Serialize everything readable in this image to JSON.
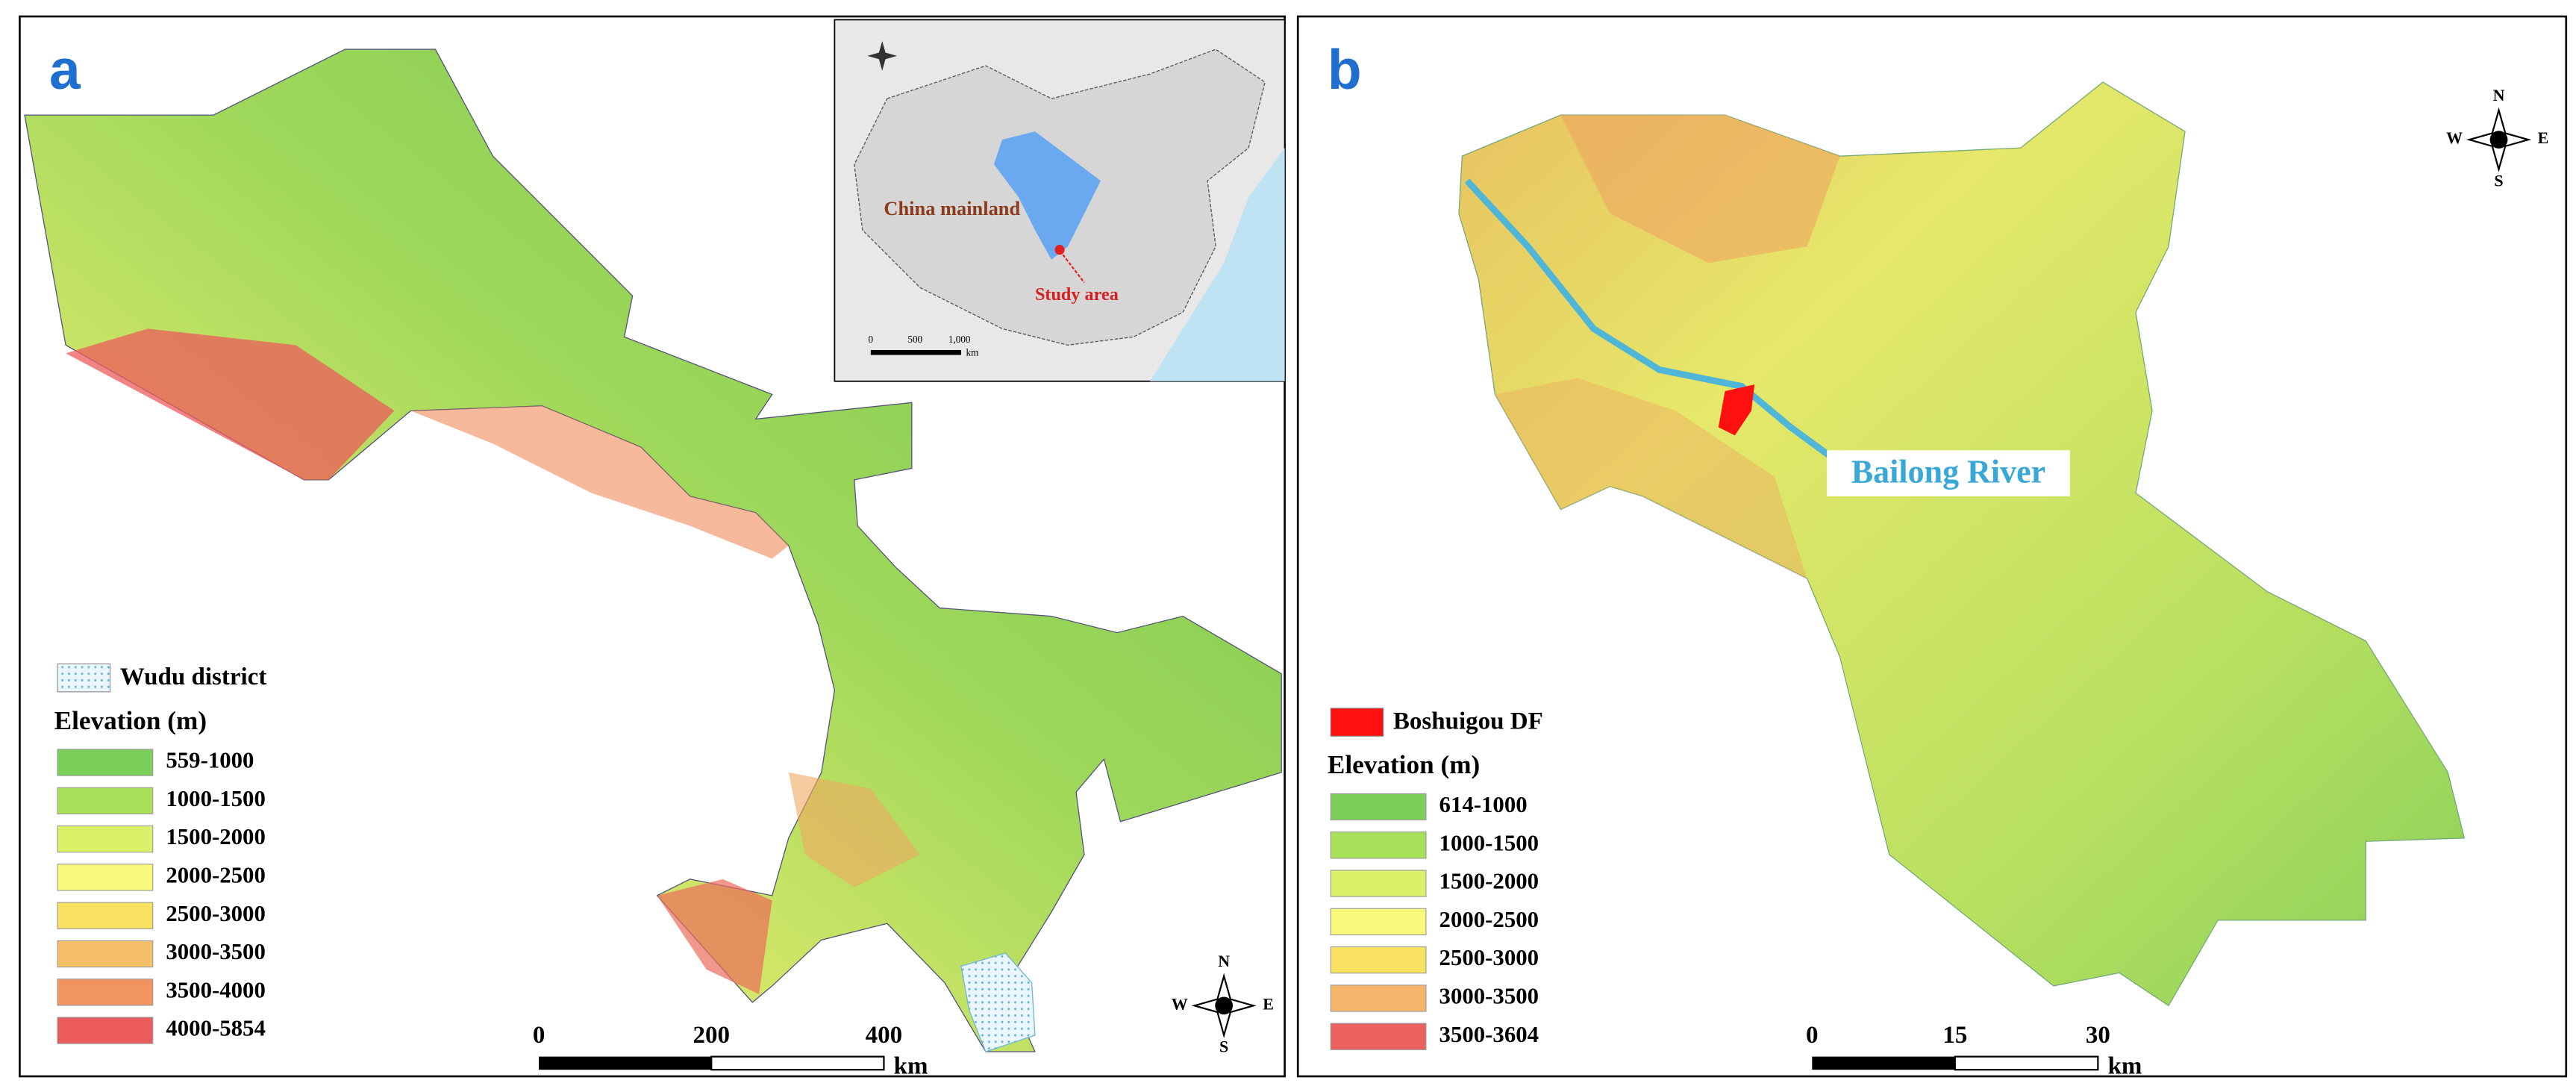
{
  "panel_a": {
    "label": "a",
    "legend": {
      "district": "Wudu district",
      "title": "Elevation (m)",
      "items": [
        {
          "range": "559-1000",
          "color": "#7ccf5a"
        },
        {
          "range": "1000-1500",
          "color": "#a8e05a"
        },
        {
          "range": "1500-2000",
          "color": "#dcf06a"
        },
        {
          "range": "2000-2500",
          "color": "#f8f87a"
        },
        {
          "range": "2500-3000",
          "color": "#f8e060"
        },
        {
          "range": "3000-3500",
          "color": "#f5bf6a"
        },
        {
          "range": "3500-4000",
          "color": "#f19460"
        },
        {
          "range": "4000-5854",
          "color": "#ec5b5b"
        }
      ]
    },
    "scale": {
      "ticks": [
        "0",
        "200",
        "400"
      ],
      "unit": "km"
    },
    "compass": {
      "n": "N",
      "s": "S",
      "w": "W",
      "e": "E"
    },
    "inset": {
      "region": "China mainland",
      "study": "Study area",
      "scale": [
        "0",
        "500",
        "1,000"
      ],
      "unit": "km"
    }
  },
  "panel_b": {
    "label": "b",
    "river": "Bailong River",
    "legend": {
      "feature": "Boshuigou DF",
      "title": "Elevation (m)",
      "items": [
        {
          "range": "614-1000",
          "color": "#7ccf5a"
        },
        {
          "range": "1000-1500",
          "color": "#a8e05a"
        },
        {
          "range": "1500-2000",
          "color": "#dcf06a"
        },
        {
          "range": "2000-2500",
          "color": "#f8f87a"
        },
        {
          "range": "2500-3000",
          "color": "#f8e060"
        },
        {
          "range": "3000-3500",
          "color": "#f5b56a"
        },
        {
          "range": "3500-3604",
          "color": "#ec6060"
        }
      ]
    },
    "scale": {
      "ticks": [
        "0",
        "15",
        "30"
      ],
      "unit": "km"
    },
    "compass": {
      "n": "N",
      "s": "S",
      "w": "W",
      "e": "E"
    }
  }
}
